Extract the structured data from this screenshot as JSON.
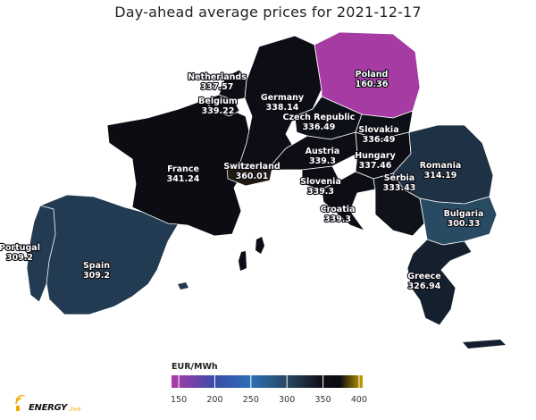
{
  "title": "Day-ahead average prices for 2021-12-17",
  "colors": {
    "background": "#ffffff",
    "border": "#ffffff",
    "scale": [
      "#b03aa8",
      "#3b4ba8",
      "#2b6fb5",
      "#27445c",
      "#101018",
      "#0b0b10",
      "#c8a000"
    ]
  },
  "countries": [
    {
      "id": "poland",
      "name": "Poland",
      "price": "160.36",
      "fill": "#a63ca3"
    },
    {
      "id": "germany",
      "name": "Germany",
      "price": "338.14",
      "fill": "#0d0e15"
    },
    {
      "id": "netherlands",
      "name": "Netherlands",
      "price": "337.57",
      "fill": "#0e0f16"
    },
    {
      "id": "belgium",
      "name": "Belgium",
      "price": "339.22",
      "fill": "#0d0e15"
    },
    {
      "id": "france",
      "name": "France",
      "price": "341.24",
      "fill": "#0c0d13"
    },
    {
      "id": "switzerland",
      "name": "Switzerland",
      "price": "360.01",
      "fill": "#211a10"
    },
    {
      "id": "czech-republic",
      "name": "Czech Republic",
      "price": "336.49",
      "fill": "#0e1017"
    },
    {
      "id": "slovakia",
      "name": "Slovakia",
      "price": "336.49",
      "fill": "#0e1017"
    },
    {
      "id": "austria",
      "name": "Austria",
      "price": "339.3",
      "fill": "#0d0e15"
    },
    {
      "id": "hungary",
      "name": "Hungary",
      "price": "337.46",
      "fill": "#0e0f16"
    },
    {
      "id": "slovenia",
      "name": "Slovenia",
      "price": "339.3",
      "fill": "#0d0e15"
    },
    {
      "id": "croatia",
      "name": "Croatia",
      "price": "339.3",
      "fill": "#0d0e15"
    },
    {
      "id": "serbia",
      "name": "Serbia",
      "price": "333.43",
      "fill": "#101219"
    },
    {
      "id": "romania",
      "name": "Romania",
      "price": "314.19",
      "fill": "#1e3145"
    },
    {
      "id": "bulgaria",
      "name": "Bulgaria",
      "price": "300.33",
      "fill": "#284a62"
    },
    {
      "id": "greece",
      "name": "Greece",
      "price": "326.94",
      "fill": "#15202e"
    },
    {
      "id": "spain",
      "name": "Spain",
      "price": "309.2",
      "fill": "#223a52"
    },
    {
      "id": "portugal",
      "name": "Portugal",
      "price": "309.2",
      "fill": "#223a52"
    }
  ],
  "legend": {
    "title": "EUR/MWh",
    "ticks": [
      "150",
      "200",
      "250",
      "300",
      "350",
      "400"
    ],
    "min": 140,
    "max": 405
  },
  "logo": {
    "text": "ENERGY",
    "suffix": ".live"
  }
}
